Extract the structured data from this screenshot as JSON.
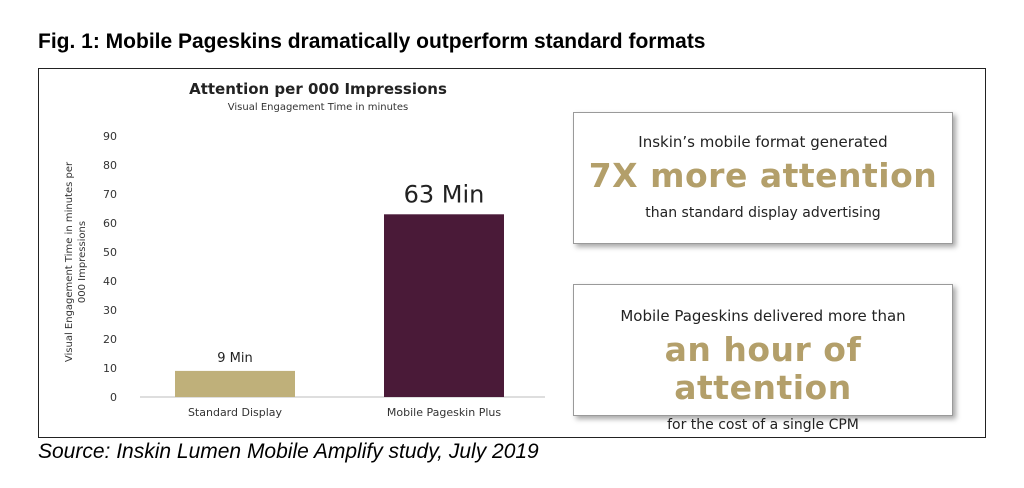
{
  "figure": {
    "title": "Fig. 1: Mobile Pageskins dramatically outperform standard formats",
    "source": "Source: Inskin Lumen Mobile Amplify study, July 2019"
  },
  "chart_data": {
    "type": "bar",
    "title": "Attention per 000 Impressions",
    "subtitle": "Visual Engagement Time in minutes",
    "ylabel_line1": "Visual Engagement Time in minutes per",
    "ylabel_line2": "000 Impressions",
    "xlabel": "",
    "ylim": [
      0,
      90
    ],
    "yticks": [
      0,
      10,
      20,
      30,
      40,
      50,
      60,
      70,
      80,
      90
    ],
    "categories": [
      "Standard Display",
      "Mobile Pageskin Plus"
    ],
    "values": [
      9,
      63
    ],
    "data_labels": [
      "9 Min",
      "63 Min"
    ],
    "bar_colors": [
      "#bfb07a",
      "#4a1a38"
    ],
    "grid": false,
    "legend": "none"
  },
  "callouts": [
    {
      "line1": "Inskin’s mobile format generated",
      "big": "7X more attention",
      "line3": "than standard display advertising"
    },
    {
      "line1": "Mobile Pageskins delivered more than",
      "big": "an hour of attention",
      "line3": "for the cost of a single CPM"
    }
  ],
  "colors": {
    "accent_gold": "#b39f6a",
    "bar_standard": "#bfb07a",
    "bar_pageskin": "#4a1a38"
  }
}
